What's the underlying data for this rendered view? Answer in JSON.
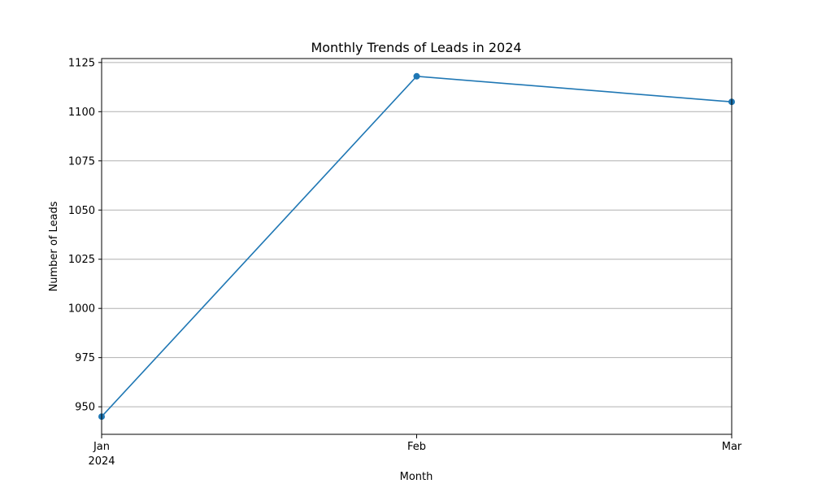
{
  "chart_data": {
    "type": "line",
    "title": "Monthly Trends of Leads in 2024",
    "xlabel": "Month",
    "ylabel": "Number of Leads",
    "categories": [
      "Jan",
      "Feb",
      "Mar"
    ],
    "x_year_label": "2024",
    "series": [
      {
        "values": [
          945,
          1118,
          1105
        ]
      }
    ],
    "ylim": [
      936,
      1127
    ],
    "yticks": [
      950,
      975,
      1000,
      1025,
      1050,
      1075,
      1100,
      1125
    ],
    "grid": "y-axis",
    "line_color": "#1f77b4",
    "marker": "circle"
  }
}
